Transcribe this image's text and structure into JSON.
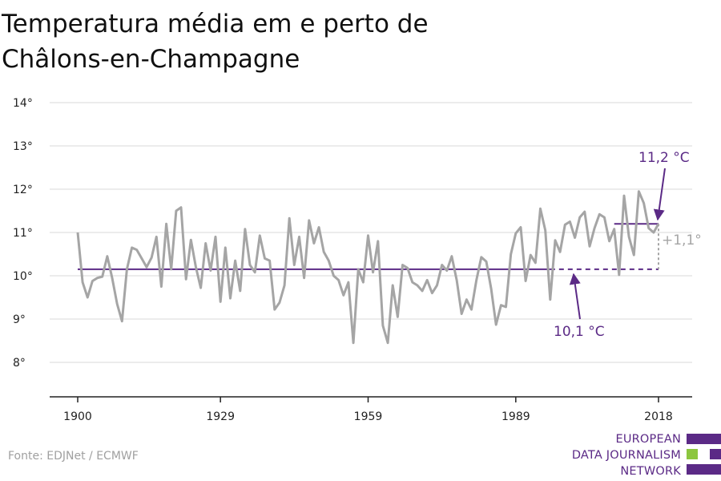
{
  "title_lines": [
    "Temperatura média em e perto de",
    "Châlons-en-Champagne"
  ],
  "source": "Fonte: EDJNet / ECMWF",
  "logo": {
    "lines": [
      "EUROPEAN",
      "DATA JOURNALISM",
      "NETWORK"
    ],
    "colors": {
      "purple": "#5b2a86",
      "green": "#8cc63f"
    }
  },
  "colors": {
    "series": "#a5a5a5",
    "baseline": "#5b2a86",
    "recent": "#5b2a86",
    "grid": "#d9d9d9",
    "delta": "#a5a5a5"
  },
  "chart_data": {
    "type": "line",
    "title": "Temperatura média em e perto de Châlons-en-Champagne",
    "ylim": [
      7,
      14
    ],
    "xlim": [
      1900,
      2018
    ],
    "y_ticks": [
      8,
      9,
      10,
      11,
      12,
      13,
      14
    ],
    "y_tick_labels": [
      "8°",
      "9°",
      "10°",
      "11°",
      "12°",
      "13°",
      "14°"
    ],
    "x_ticks": [
      1900,
      1929,
      1959,
      1989,
      2018
    ],
    "x_tick_labels": [
      "1900",
      "1929",
      "1959",
      "1989",
      "2018"
    ],
    "grid": true,
    "series": [
      {
        "x": [
          1900,
          1901,
          1902,
          1903,
          1904,
          1905,
          1906,
          1907,
          1908,
          1909,
          1910,
          1911,
          1912,
          1913,
          1914,
          1915,
          1916,
          1917,
          1918,
          1919,
          1920,
          1921,
          1922,
          1923,
          1924,
          1925,
          1926,
          1927,
          1928,
          1929,
          1930,
          1931,
          1932,
          1933,
          1934,
          1935,
          1936,
          1937,
          1938,
          1939,
          1940,
          1941,
          1942,
          1943,
          1944,
          1945,
          1946,
          1947,
          1948,
          1949,
          1950,
          1951,
          1952,
          1953,
          1954,
          1955,
          1956,
          1957,
          1958,
          1959,
          1960,
          1961,
          1962,
          1963,
          1964,
          1965,
          1966,
          1967,
          1968,
          1969,
          1970,
          1971,
          1972,
          1973,
          1974,
          1975,
          1976,
          1977,
          1978,
          1979,
          1980,
          1981,
          1982,
          1983,
          1984,
          1985,
          1986,
          1987,
          1988,
          1989,
          1990,
          1991,
          1992,
          1993,
          1994,
          1995,
          1996,
          1997,
          1998,
          1999,
          2000,
          2001,
          2002,
          2003,
          2004,
          2005,
          2006,
          2007,
          2008,
          2009,
          2010,
          2011,
          2012,
          2013,
          2014,
          2015,
          2016,
          2017,
          2018
        ],
        "values": [
          11.0,
          9.85,
          9.5,
          9.88,
          9.95,
          9.98,
          10.45,
          9.95,
          9.35,
          8.95,
          10.15,
          10.65,
          10.6,
          10.4,
          10.2,
          10.42,
          10.9,
          9.75,
          11.2,
          10.15,
          11.5,
          11.58,
          9.92,
          10.83,
          10.2,
          9.72,
          10.75,
          10.12,
          10.9,
          9.4,
          10.65,
          9.48,
          10.35,
          9.65,
          11.08,
          10.25,
          10.08,
          10.93,
          10.4,
          10.35,
          9.22,
          9.38,
          9.78,
          11.33,
          10.25,
          10.9,
          9.95,
          11.28,
          10.75,
          11.12,
          10.55,
          10.35,
          10.0,
          9.9,
          9.55,
          9.85,
          8.45,
          10.15,
          9.85,
          10.93,
          10.08,
          10.8,
          8.85,
          8.45,
          9.78,
          9.05,
          10.25,
          10.18,
          9.85,
          9.78,
          9.65,
          9.9,
          9.6,
          9.78,
          10.25,
          10.12,
          10.45,
          9.9,
          9.12,
          9.45,
          9.22,
          9.9,
          10.43,
          10.33,
          9.7,
          8.87,
          9.32,
          9.28,
          10.5,
          10.98,
          11.12,
          9.88,
          10.48,
          10.3,
          11.55,
          11.05,
          9.45,
          10.82,
          10.55,
          11.18,
          11.25,
          10.88,
          11.35,
          11.48,
          10.68,
          11.1,
          11.42,
          11.35,
          10.8,
          11.08,
          10.02,
          11.85,
          10.9,
          10.48,
          11.95,
          11.68,
          11.1,
          11.0,
          11.2
        ]
      }
    ],
    "reference_lines": [
      {
        "label": "10,1 °C",
        "value": 10.15,
        "x_range": [
          1900,
          2018
        ]
      },
      {
        "label": "11,2 °C",
        "value": 11.2,
        "x_range": [
          2009,
          2018
        ]
      }
    ],
    "annotations": {
      "baseline": "10,1 °C",
      "recent": "11,2 °C",
      "delta": "+1,1°"
    }
  }
}
